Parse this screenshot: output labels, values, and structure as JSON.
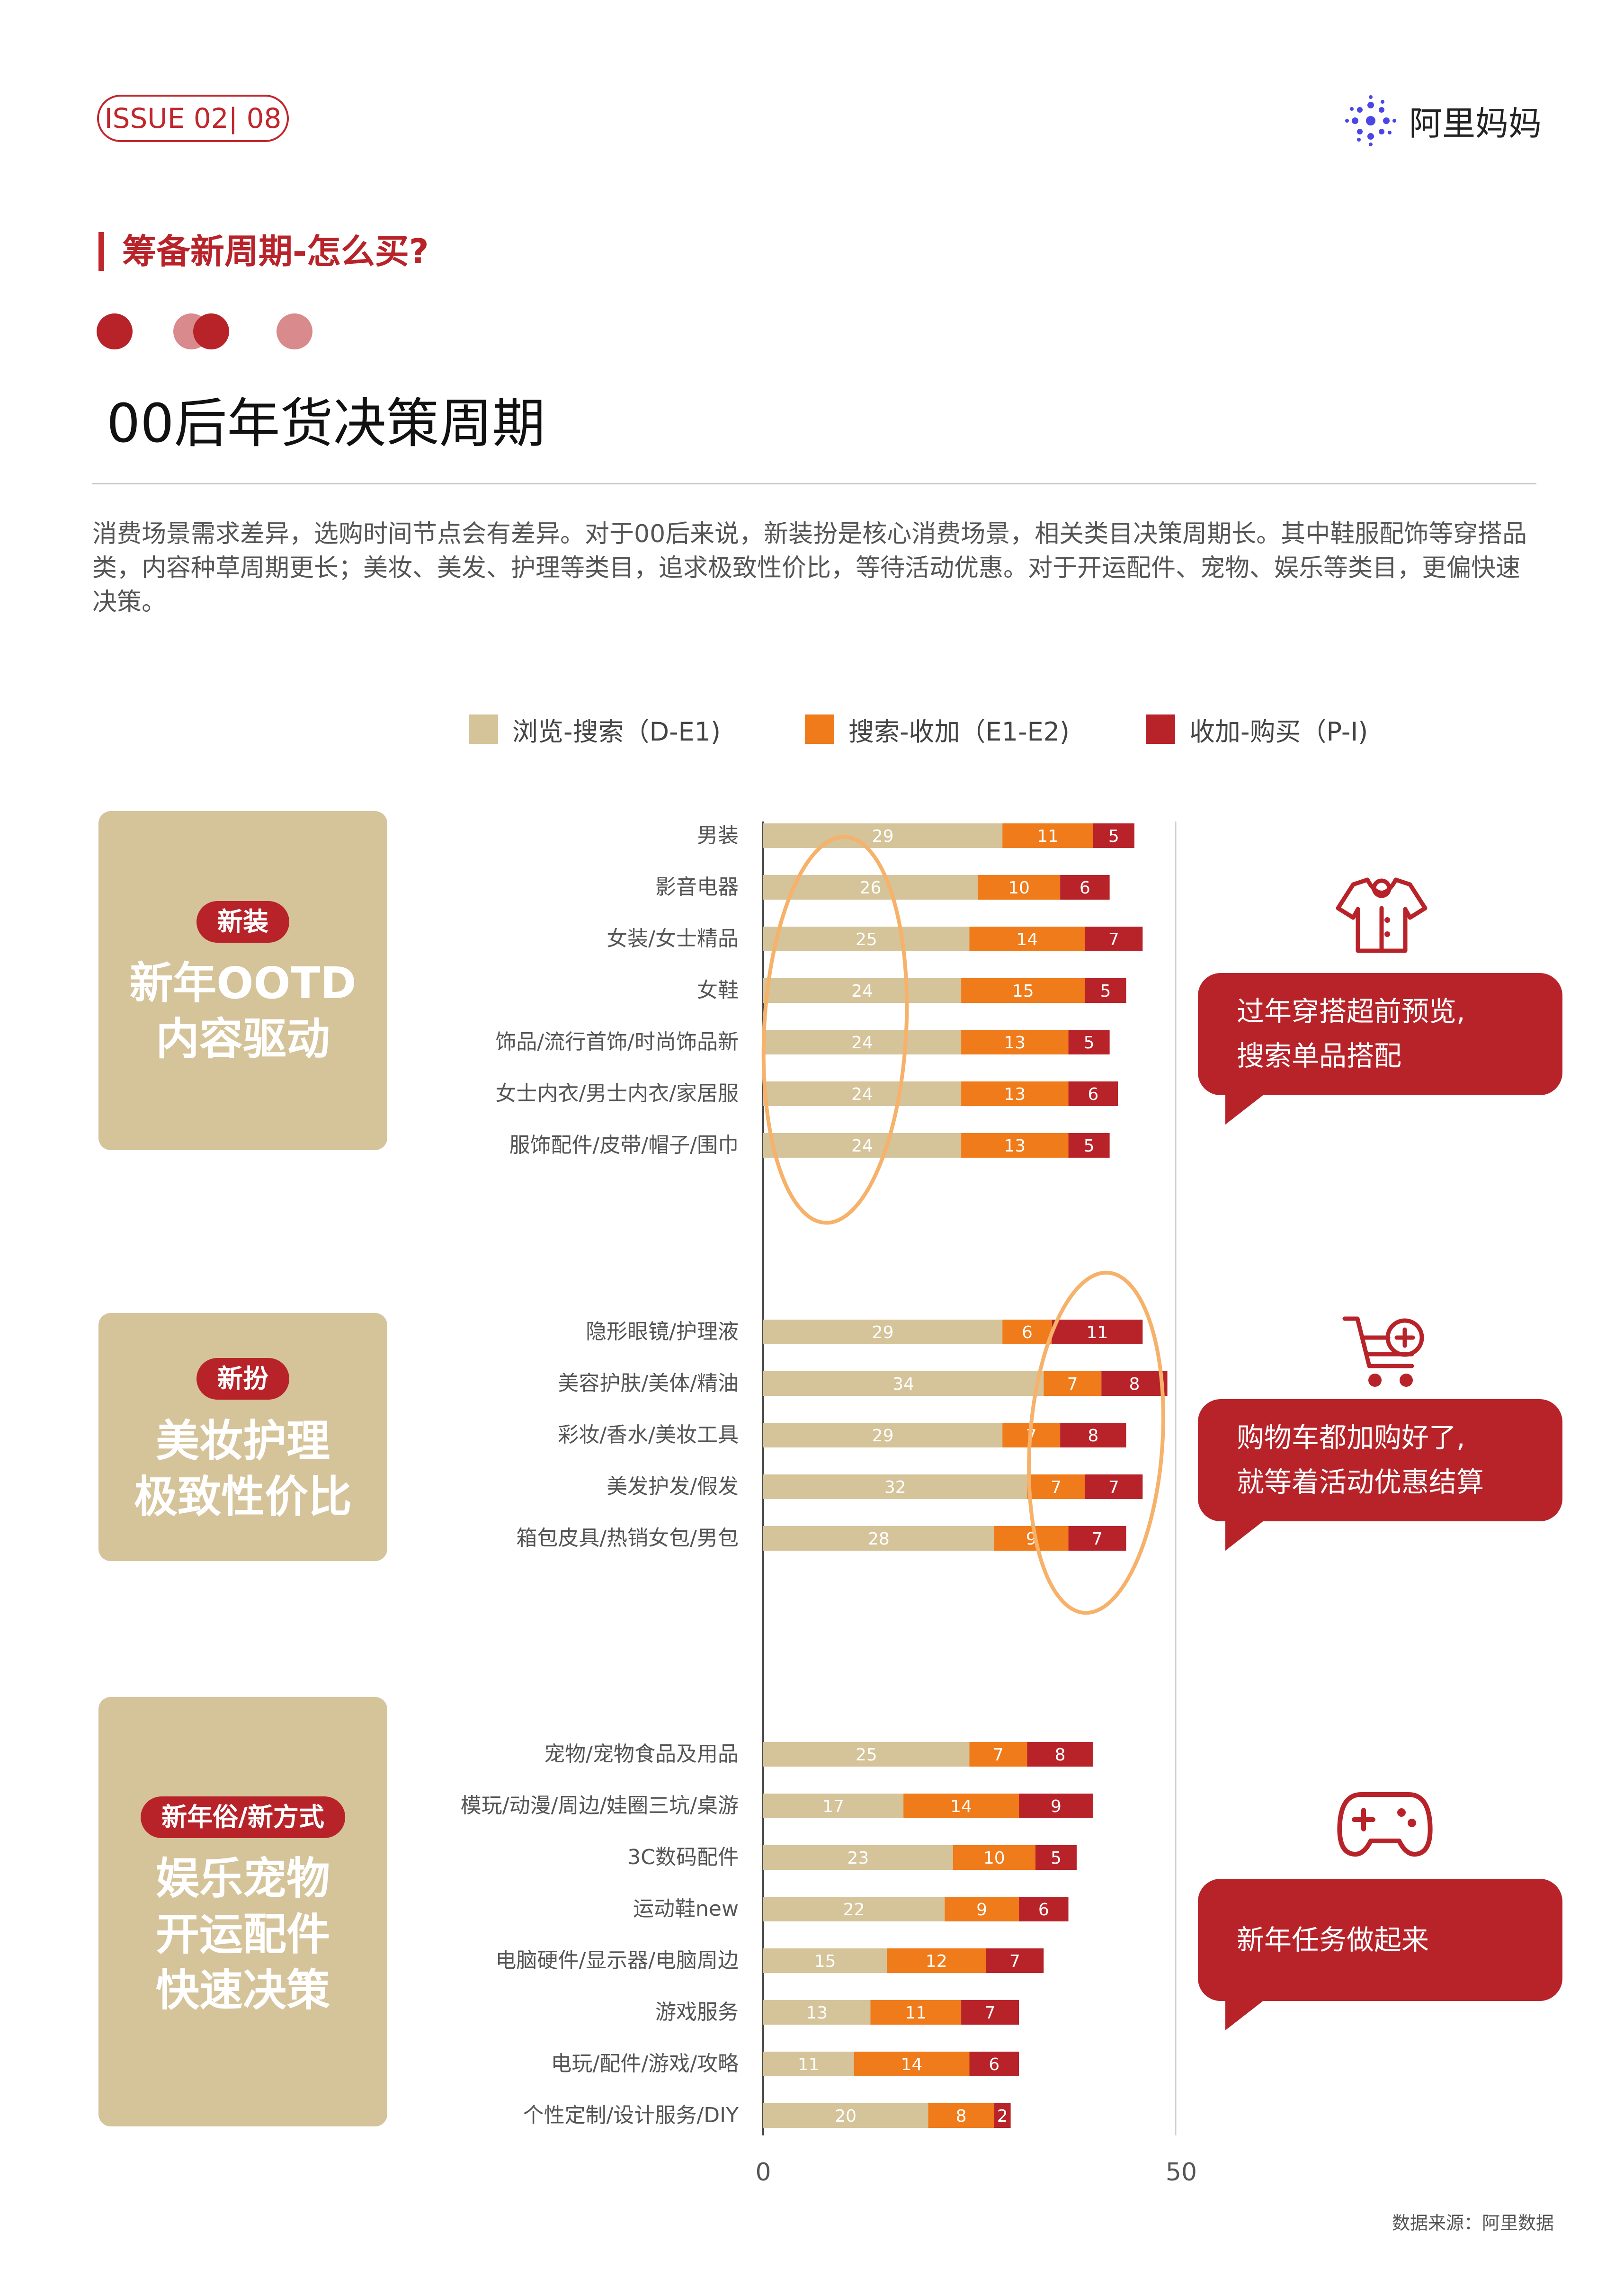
{
  "header": {
    "issue": "ISSUE 02| 08",
    "brand": "阿里妈妈",
    "section_title": "筹备新周期-怎么买?",
    "main_title": "00后年货决策周期",
    "intro": "消费场景需求差异，选购时间节点会有差异。对于00后来说，新装扮是核心消费场景，相关类目决策周期长。其中鞋服配饰等穿搭品类，内容种草周期更长；美妆、美发、护理等类目，追求极致性价比，等待活动优惠。对于开运配件、宠物、娱乐等类目，更偏快速决策。"
  },
  "colors": {
    "browse": "#d5c39a",
    "search": "#ef7b1b",
    "purchase": "#b8232a",
    "accent": "#c0272d",
    "highlight": "#f6b16a"
  },
  "panels": [
    {
      "pill": "新装",
      "lines": [
        "新年OOTD",
        "内容驱动"
      ]
    },
    {
      "pill": "新扮",
      "lines": [
        "美妆护理",
        "极致性价比"
      ]
    },
    {
      "pill": "新年俗/新方式",
      "lines": [
        "娱乐宠物",
        "开运配件",
        "快速决策"
      ]
    }
  ],
  "callouts": [
    {
      "icon": "shirt-icon",
      "lines": [
        "过年穿搭超前预览,",
        "搜索单品搭配"
      ]
    },
    {
      "icon": "cart-plus-icon",
      "lines": [
        "购物车都加购好了,",
        "就等着活动优惠结算"
      ]
    },
    {
      "icon": "gamepad-icon",
      "lines": [
        "新年任务做起来"
      ]
    }
  ],
  "chart_data": {
    "type": "bar",
    "orientation": "horizontal",
    "stacked": true,
    "series": [
      {
        "name": "浏览-搜索（D-E1)"
      },
      {
        "name": "搜索-收加（E1-E2)"
      },
      {
        "name": "收加-购买（P-I)"
      }
    ],
    "groups": [
      {
        "categories": [
          "男装",
          "影音电器",
          "女装/女士精品",
          "女鞋",
          "饰品/流行首饰/时尚饰品新",
          "女士内衣/男士内衣/家居服",
          "服饰配件/皮带/帽子/围巾"
        ],
        "values": [
          [
            29,
            11,
            5
          ],
          [
            26,
            10,
            6
          ],
          [
            25,
            14,
            7
          ],
          [
            24,
            15,
            5
          ],
          [
            24,
            13,
            5
          ],
          [
            24,
            13,
            6
          ],
          [
            24,
            13,
            5
          ]
        ]
      },
      {
        "categories": [
          "隐形眼镜/护理液",
          "美容护肤/美体/精油",
          "彩妆/香水/美妆工具",
          "美发护发/假发",
          "箱包皮具/热销女包/男包"
        ],
        "values": [
          [
            29,
            6,
            11
          ],
          [
            34,
            7,
            8
          ],
          [
            29,
            7,
            8
          ],
          [
            32,
            7,
            7
          ],
          [
            28,
            9,
            7
          ]
        ]
      },
      {
        "categories": [
          "宠物/宠物食品及用品",
          "模玩/动漫/周边/娃圈三坑/桌游",
          "3C数码配件",
          "运动鞋new",
          "电脑硬件/显示器/电脑周边",
          "游戏服务",
          "电玩/配件/游戏/攻略",
          "个性定制/设计服务/DIY"
        ],
        "values": [
          [
            25,
            7,
            8
          ],
          [
            17,
            14,
            9
          ],
          [
            23,
            10,
            5
          ],
          [
            22,
            9,
            6
          ],
          [
            15,
            12,
            7
          ],
          [
            13,
            11,
            7
          ],
          [
            11,
            14,
            6
          ],
          [
            20,
            8,
            2
          ]
        ]
      }
    ],
    "xlim": [
      0,
      50
    ],
    "xticks": [
      "0",
      "50"
    ],
    "legend": "top"
  },
  "footer": {
    "source": "数据来源：阿里数据"
  }
}
